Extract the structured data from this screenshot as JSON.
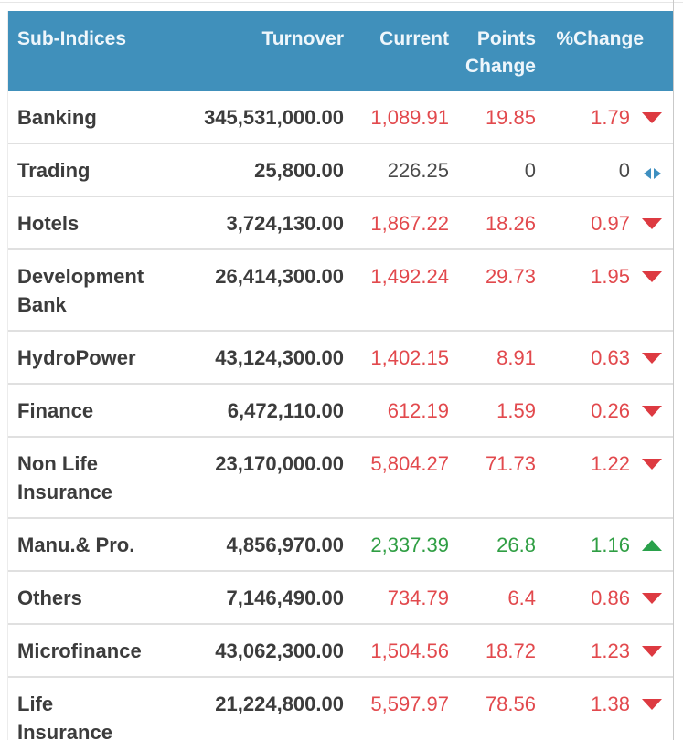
{
  "table": {
    "columns": {
      "name": "Sub-Indices",
      "turnover": "Turnover",
      "current": "Current",
      "points_change": "Points Change",
      "pct_change": "%Change"
    },
    "colors": {
      "header_bg": "#4090bb",
      "header_text": "#eef6fb",
      "negative": "#e2494d",
      "positive": "#2f9e43",
      "neutral": "#4a4a4a",
      "no_change_icon": "#3e8fc0"
    },
    "rows": [
      {
        "name": "Banking",
        "turnover": "345,531,000.00",
        "current": "1,089.91",
        "points_change": "19.85",
        "pct_change": "1.79",
        "direction": "down"
      },
      {
        "name": "Trading",
        "turnover": "25,800.00",
        "current": "226.25",
        "points_change": "0",
        "pct_change": "0",
        "direction": "none"
      },
      {
        "name": "Hotels",
        "turnover": "3,724,130.00",
        "current": "1,867.22",
        "points_change": "18.26",
        "pct_change": "0.97",
        "direction": "down"
      },
      {
        "name": "Development Bank",
        "turnover": "26,414,300.00",
        "current": "1,492.24",
        "points_change": "29.73",
        "pct_change": "1.95",
        "direction": "down"
      },
      {
        "name": "HydroPower",
        "turnover": "43,124,300.00",
        "current": "1,402.15",
        "points_change": "8.91",
        "pct_change": "0.63",
        "direction": "down"
      },
      {
        "name": "Finance",
        "turnover": "6,472,110.00",
        "current": "612.19",
        "points_change": "1.59",
        "pct_change": "0.26",
        "direction": "down"
      },
      {
        "name": "Non Life Insurance",
        "turnover": "23,170,000.00",
        "current": "5,804.27",
        "points_change": "71.73",
        "pct_change": "1.22",
        "direction": "down"
      },
      {
        "name": "Manu.& Pro.",
        "turnover": "4,856,970.00",
        "current": "2,337.39",
        "points_change": "26.8",
        "pct_change": "1.16",
        "direction": "up"
      },
      {
        "name": "Others",
        "turnover": "7,146,490.00",
        "current": "734.79",
        "points_change": "6.4",
        "pct_change": "0.86",
        "direction": "down"
      },
      {
        "name": "Microfinance",
        "turnover": "43,062,300.00",
        "current": "1,504.56",
        "points_change": "18.72",
        "pct_change": "1.23",
        "direction": "down"
      },
      {
        "name": "Life Insurance",
        "turnover": "21,224,800.00",
        "current": "5,597.97",
        "points_change": "78.56",
        "pct_change": "1.38",
        "direction": "down"
      }
    ]
  }
}
